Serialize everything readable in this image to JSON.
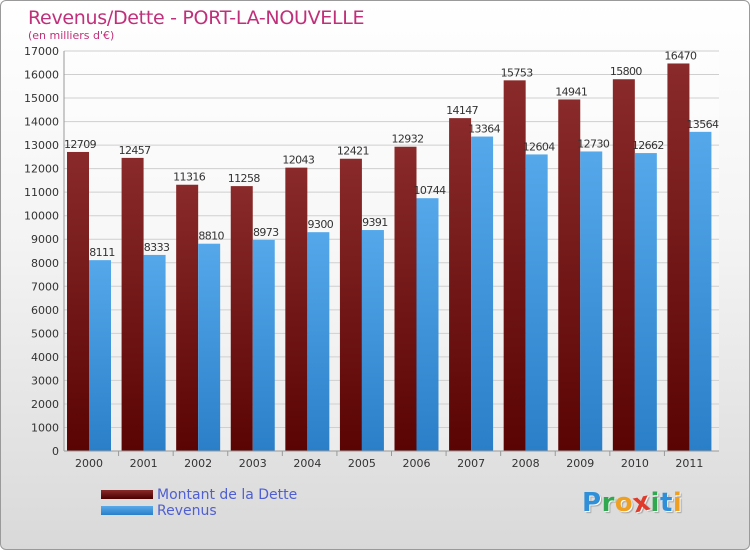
{
  "title": "Revenus/Dette - PORT-LA-NOUVELLE",
  "subtitle": "(en milliers d'€)",
  "chart_data": {
    "type": "bar",
    "categories": [
      "2000",
      "2001",
      "2002",
      "2003",
      "2004",
      "2005",
      "2006",
      "2007",
      "2008",
      "2009",
      "2010",
      "2011"
    ],
    "series": [
      {
        "name": "Montant de la Dette",
        "values": [
          12709,
          12457,
          11316,
          11258,
          12043,
          12421,
          12932,
          14147,
          15753,
          14941,
          15800,
          16470
        ],
        "color": "#7f1d1d"
      },
      {
        "name": "Revenus",
        "values": [
          8111,
          8333,
          8810,
          8973,
          9300,
          9391,
          10744,
          13364,
          12604,
          12730,
          12662,
          13564
        ],
        "color": "#3a92dd"
      }
    ],
    "data_labels": [
      [
        "12709",
        "12457",
        "11316",
        "11258",
        "12043",
        "12421",
        "12932",
        "14147",
        "15753",
        "14941",
        "15800",
        "16470"
      ],
      [
        "8111",
        "8333",
        "8810",
        "8973",
        "9300",
        "9391",
        "10744",
        "13364",
        "12604",
        "12730",
        "12662",
        "13564"
      ]
    ],
    "yticks": [
      0,
      1000,
      2000,
      3000,
      4000,
      5000,
      6000,
      7000,
      8000,
      9000,
      10000,
      11000,
      12000,
      13000,
      14000,
      15000,
      16000,
      17000
    ],
    "ylim": [
      0,
      17000
    ],
    "grid": true,
    "legend_position": "bottom-left"
  },
  "logo": {
    "letters": [
      "P",
      "r",
      "o",
      "x",
      "i",
      "t",
      "i"
    ],
    "colors": [
      "#2f8fd8",
      "#2fa84f",
      "#f0a020",
      "#e03a2a",
      "#2fa84f",
      "#2f8fd8",
      "#f0a020"
    ]
  }
}
